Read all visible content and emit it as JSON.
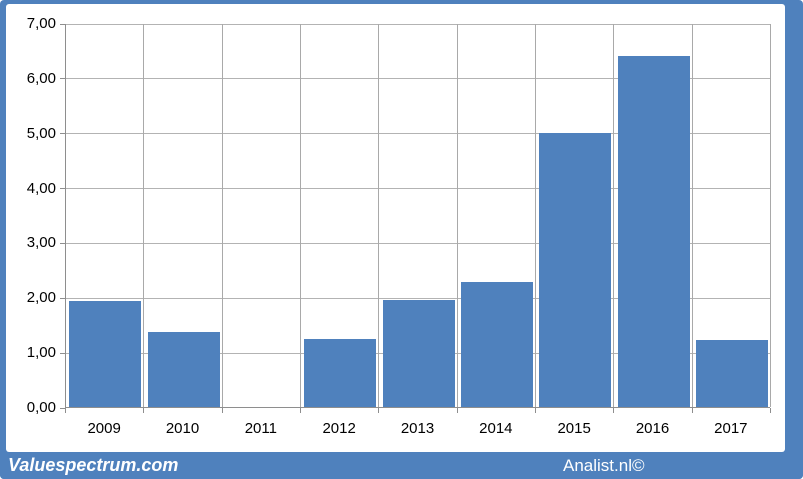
{
  "chart_data": {
    "type": "bar",
    "title": "",
    "categories": [
      "2009",
      "2010",
      "2011",
      "2012",
      "2013",
      "2014",
      "2015",
      "2016",
      "2017"
    ],
    "values": [
      1.94,
      1.36,
      0,
      1.24,
      1.95,
      2.27,
      5.0,
      6.4,
      1.22
    ],
    "xlabel": "",
    "ylabel": "",
    "ylim": [
      0,
      7
    ],
    "ytick_step": 1,
    "ytick_labels": [
      "0,00",
      "1,00",
      "2,00",
      "3,00",
      "4,00",
      "5,00",
      "6,00",
      "7,00"
    ],
    "grid": true,
    "legend": "none",
    "bar_color": "#4f81bd"
  },
  "footer": {
    "left_text": "Valuespectrum.com",
    "right_text": "Analist.nl©"
  },
  "colors": {
    "accent_blue": "#4f81bd",
    "gridline_h": "#b3b3b3",
    "gridline_v": "#a9a9a9",
    "axis": "#8e8e8e",
    "label_text": "#000000",
    "footer_text": "#ffffff"
  }
}
